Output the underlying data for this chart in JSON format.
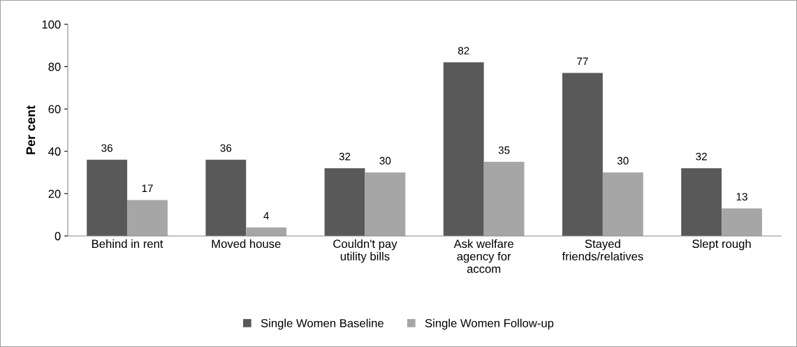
{
  "chart_data": {
    "type": "bar",
    "ylabel": "Per cent",
    "categories": [
      "Behind in rent",
      "Moved house",
      "Couldn't pay\nutility bills",
      "Ask welfare\nagency for\naccom",
      "Stayed\nfriends/relatives",
      "Slept rough"
    ],
    "series": [
      {
        "name": "Single Women Baseline",
        "color": "#595959",
        "values": [
          36,
          36,
          32,
          82,
          77,
          32
        ]
      },
      {
        "name": "Single Women Follow-up",
        "color": "#a6a6a6",
        "values": [
          17,
          4,
          30,
          35,
          30,
          13
        ]
      }
    ],
    "ylim": [
      0,
      100
    ],
    "yticks": [
      0,
      20,
      40,
      60,
      80,
      100
    ],
    "data_labels": true,
    "grid": false,
    "legend": "bottom"
  }
}
